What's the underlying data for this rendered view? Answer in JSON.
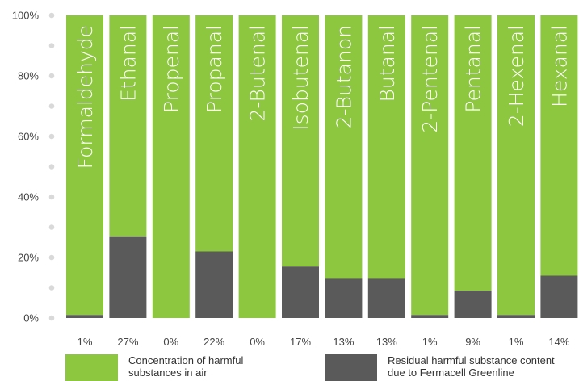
{
  "chart_data": {
    "type": "bar",
    "stacked": true,
    "categories": [
      "Formaldehyde",
      "Ethanal",
      "Propenal",
      "Propanal",
      "2-Butenal",
      "Isobutenal",
      "2-Butanon",
      "Butanal",
      "2-Pentenal",
      "Pentanal",
      "2-Hexenal",
      "Hexanal"
    ],
    "series": [
      {
        "name": "Residual harmful substance content due to Fermacell Greenline",
        "values": [
          1,
          27,
          0,
          22,
          0,
          17,
          13,
          13,
          1,
          9,
          1,
          14
        ],
        "color": "#5a5a5a"
      },
      {
        "name": "Concentration of harmful substances in air",
        "values": [
          99,
          73,
          100,
          78,
          100,
          83,
          87,
          87,
          99,
          91,
          99,
          86
        ],
        "color": "#8dc63f"
      }
    ],
    "value_labels": [
      "1%",
      "27%",
      "0%",
      "22%",
      "0%",
      "17%",
      "13%",
      "13%",
      "1%",
      "9%",
      "1%",
      "14%"
    ],
    "ylim": [
      0,
      100
    ],
    "y_ticks": [
      "0%",
      "20%",
      "40%",
      "60%",
      "80%",
      "100%"
    ],
    "xlabel": "",
    "ylabel": "",
    "title": ""
  },
  "legend": {
    "items": [
      {
        "label": "Concentration of harmful substances in air",
        "color": "#8dc63f"
      },
      {
        "label": "Residual harmful substance content due to Fermacell Greenline",
        "color": "#5a5a5a"
      }
    ]
  }
}
